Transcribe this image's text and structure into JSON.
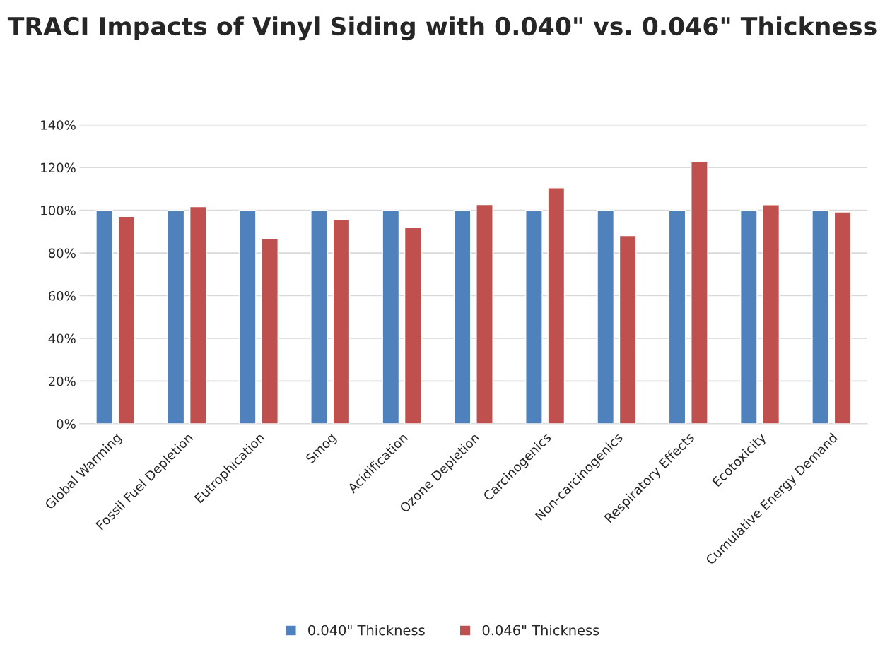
{
  "chart_data": {
    "type": "bar",
    "title": "TRACI Impacts of Vinyl Siding with 0.040\" vs. 0.046\" Thickness",
    "categories": [
      "Global Warming",
      "Fossil Fuel Depletion",
      "Eutrophication",
      "Smog",
      "Acidification",
      "Ozone Depletion",
      "Carcinogenics",
      "Non-carcinogenics",
      "Respiratory Effects",
      "Ecotoxicity",
      "Cumulative Energy Demand"
    ],
    "series": [
      {
        "name": "0.040\" Thickness",
        "color": "#4f81bd",
        "values": [
          100,
          100,
          100,
          100,
          100,
          100,
          100,
          100,
          100,
          100,
          100
        ]
      },
      {
        "name": "0.046\" Thickness",
        "color": "#c0504d",
        "values": [
          97.1,
          101.7,
          86.7,
          95.7,
          91.8,
          102.7,
          110.5,
          88.1,
          122.9,
          102.6,
          99.2
        ]
      }
    ],
    "ylim": [
      0,
      140
    ],
    "yticks": [
      {
        "value": 0,
        "label": "0%"
      },
      {
        "value": 20,
        "label": "20%"
      },
      {
        "value": 40,
        "label": "40%"
      },
      {
        "value": 60,
        "label": "60%"
      },
      {
        "value": 80,
        "label": "80%"
      },
      {
        "value": 100,
        "label": "100%"
      },
      {
        "value": 120,
        "label": "120%"
      },
      {
        "value": 140,
        "label": "140%"
      }
    ],
    "grid": "y",
    "legend": "bottom"
  }
}
